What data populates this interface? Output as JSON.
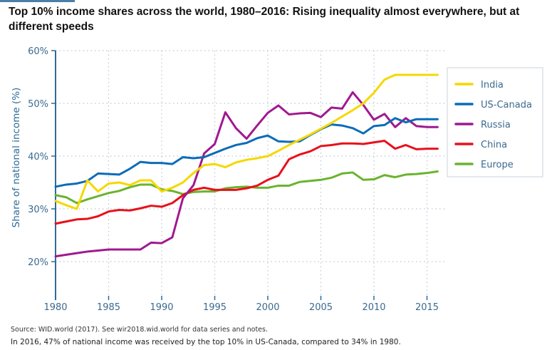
{
  "title": "Top 10% income shares across the world, 1980–2016: Rising inequality almost everywhere, but at different speeds",
  "source": "Source: WID.world (2017). See wir2018.wid.world for data series and notes.",
  "note": "In 2016, 47% of national income was received by the top 10% in US-Canada, compared to 34% in 1980.",
  "chart_data": {
    "type": "line",
    "title": "Top 10% income shares across the world, 1980–2016: Rising inequality almost everywhere, but at different speeds",
    "xlabel": "",
    "ylabel": "Share of national income (%)",
    "xlim": [
      1980,
      2016
    ],
    "ylim": [
      14,
      60
    ],
    "xticks": [
      "1980",
      "1985",
      "1990",
      "1995",
      "2000",
      "2005",
      "2010",
      "2015"
    ],
    "yticks": [
      "20%",
      "30%",
      "40%",
      "50%",
      "60%"
    ],
    "grid": true,
    "legend_position": "right",
    "x": [
      1980,
      1981,
      1982,
      1983,
      1984,
      1985,
      1986,
      1987,
      1988,
      1989,
      1990,
      1991,
      1992,
      1993,
      1994,
      1995,
      1996,
      1997,
      1998,
      1999,
      2000,
      2001,
      2002,
      2003,
      2004,
      2005,
      2006,
      2007,
      2008,
      2009,
      2010,
      2011,
      2012,
      2013,
      2014,
      2015,
      2016
    ],
    "series": [
      {
        "name": "India",
        "color": "#f5d800",
        "values": [
          31.5,
          30.7,
          30.0,
          35.4,
          33.3,
          34.8,
          35.0,
          34.5,
          35.4,
          35.4,
          33.3,
          34.0,
          35.0,
          36.8,
          38.3,
          38.5,
          37.9,
          38.8,
          39.3,
          39.6,
          40.0,
          41.0,
          42.1,
          43.1,
          44.1,
          45.2,
          46.3,
          47.5,
          48.7,
          50.0,
          52.0,
          54.5,
          55.4,
          55.4,
          55.4,
          55.4,
          55.4
        ]
      },
      {
        "name": "US-Canada",
        "color": "#0b6cb8",
        "values": [
          34.2,
          34.6,
          34.8,
          35.3,
          36.7,
          36.6,
          36.5,
          37.6,
          38.9,
          38.7,
          38.7,
          38.5,
          39.8,
          39.6,
          39.8,
          40.6,
          41.4,
          42.1,
          42.5,
          43.4,
          43.9,
          42.8,
          42.7,
          42.8,
          44.0,
          45.1,
          46.0,
          45.8,
          45.3,
          44.3,
          45.7,
          45.9,
          47.2,
          46.4,
          47.0,
          47.0,
          47.0
        ]
      },
      {
        "name": "Russia",
        "color": "#a0198f",
        "values": [
          21.0,
          21.3,
          21.6,
          21.9,
          22.1,
          22.3,
          22.3,
          22.3,
          22.3,
          23.6,
          23.5,
          24.6,
          32.0,
          34.5,
          40.5,
          42.3,
          48.3,
          45.3,
          43.3,
          45.8,
          48.2,
          49.6,
          47.9,
          48.1,
          48.2,
          47.4,
          49.2,
          49.0,
          52.1,
          49.7,
          46.9,
          48.0,
          45.5,
          47.2,
          45.7,
          45.5,
          45.5
        ]
      },
      {
        "name": "China",
        "color": "#e8101b",
        "values": [
          27.2,
          27.6,
          28.0,
          28.1,
          28.6,
          29.5,
          29.8,
          29.7,
          30.1,
          30.6,
          30.4,
          31.1,
          32.6,
          33.6,
          34.0,
          33.6,
          33.6,
          33.6,
          33.9,
          34.4,
          35.5,
          36.3,
          39.4,
          40.3,
          40.9,
          41.9,
          42.1,
          42.4,
          42.4,
          42.3,
          42.6,
          42.9,
          41.4,
          42.1,
          41.3,
          41.4,
          41.4
        ]
      },
      {
        "name": "Europe",
        "color": "#6ab42d",
        "values": [
          32.6,
          32.2,
          31.1,
          31.8,
          32.4,
          33.0,
          33.4,
          34.1,
          34.6,
          34.6,
          33.7,
          33.4,
          32.8,
          33.2,
          33.3,
          33.3,
          33.9,
          34.1,
          34.2,
          34.0,
          34.0,
          34.4,
          34.4,
          35.1,
          35.3,
          35.5,
          35.9,
          36.7,
          36.9,
          35.5,
          35.6,
          36.4,
          36.0,
          36.5,
          36.6,
          36.8,
          37.1
        ]
      }
    ]
  }
}
